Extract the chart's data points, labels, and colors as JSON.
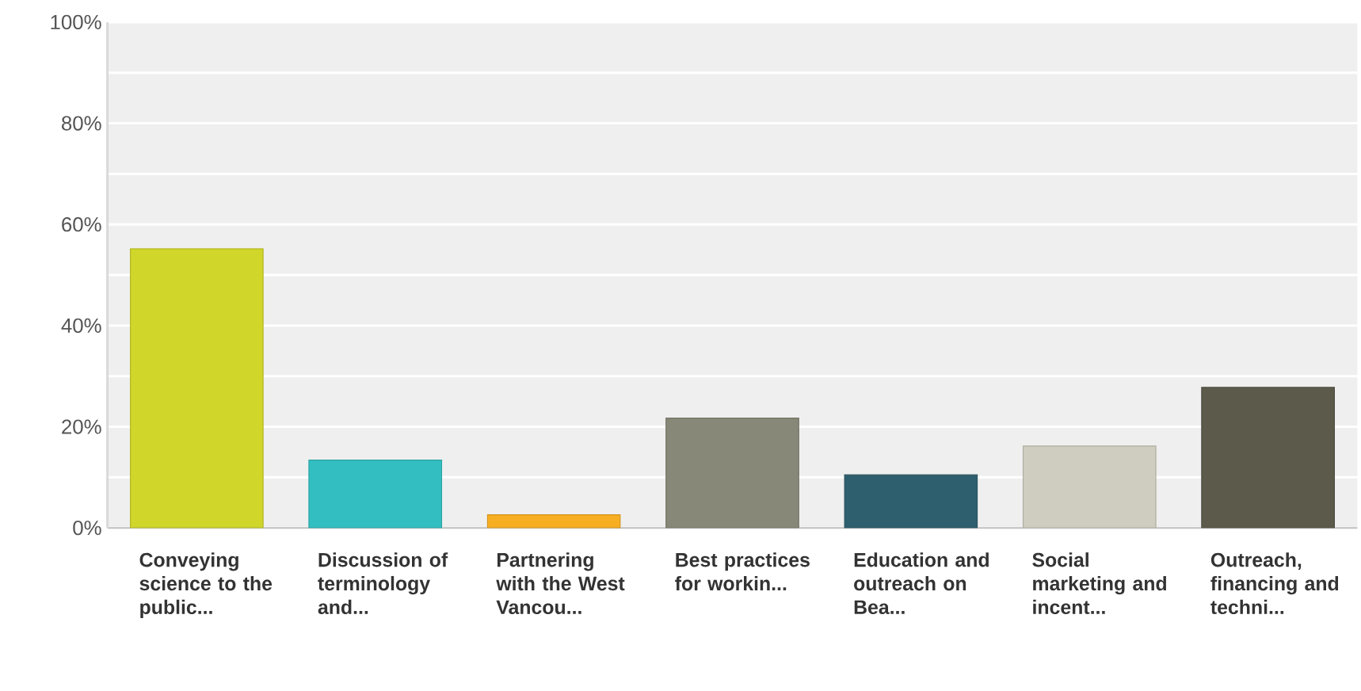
{
  "chart_data": {
    "type": "bar",
    "categories": [
      "Conveying science to the public...",
      "Discussion of terminology and...",
      "Partnering with the West Vancou...",
      "Best practices for workin...",
      "Education and outreach on Bea...",
      "Social marketing and incent...",
      "Outreach, financing and techni..."
    ],
    "values": [
      55.2,
      13.4,
      2.6,
      21.7,
      10.5,
      16.2,
      27.8
    ],
    "colors": [
      "#d0d62a",
      "#33bfc1",
      "#f7ae22",
      "#888878",
      "#2e5f6e",
      "#cfcdbf",
      "#5c5a4b"
    ],
    "ylim": [
      0,
      100
    ],
    "yticks": [
      {
        "value": 0,
        "label": "0%"
      },
      {
        "value": 10,
        "label": null
      },
      {
        "value": 20,
        "label": "20%"
      },
      {
        "value": 30,
        "label": null
      },
      {
        "value": 40,
        "label": "40%"
      },
      {
        "value": 50,
        "label": null
      },
      {
        "value": 60,
        "label": "60%"
      },
      {
        "value": 70,
        "label": null
      },
      {
        "value": 80,
        "label": "80%"
      },
      {
        "value": 90,
        "label": null
      },
      {
        "value": 100,
        "label": "100%"
      }
    ],
    "grid": "y"
  }
}
